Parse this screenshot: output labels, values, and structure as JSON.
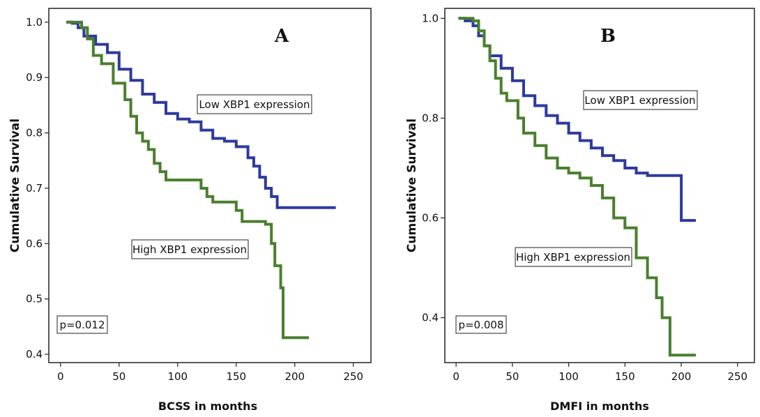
{
  "chart_data": [
    {
      "type": "line",
      "panel_label": "A",
      "xlabel": "BCSS in months",
      "ylabel": "Cumulative Survival",
      "xlim": [
        -10,
        265
      ],
      "ylim": [
        0.385,
        1.025
      ],
      "xticks": [
        0,
        50,
        100,
        150,
        200,
        250
      ],
      "yticks": [
        0.4,
        0.5,
        0.6,
        0.7,
        0.8,
        0.9,
        1.0
      ],
      "ytick_labels": [
        "0.4",
        "0.5",
        "0.6",
        "0.7",
        "0.8",
        "0.9",
        "1.0"
      ],
      "annotation": "p=0.012",
      "series": [
        {
          "name": "Low XBP1 expression",
          "color": "#2e3a9e",
          "x": [
            5,
            10,
            15,
            20,
            30,
            40,
            50,
            60,
            70,
            80,
            90,
            100,
            110,
            120,
            130,
            140,
            150,
            160,
            165,
            170,
            175,
            180,
            185,
            190,
            200,
            210,
            220,
            235
          ],
          "y": [
            1.0,
            0.998,
            0.99,
            0.975,
            0.96,
            0.945,
            0.915,
            0.895,
            0.87,
            0.855,
            0.835,
            0.825,
            0.82,
            0.805,
            0.79,
            0.785,
            0.775,
            0.755,
            0.74,
            0.72,
            0.7,
            0.685,
            0.665,
            0.665,
            0.665,
            0.665,
            0.665,
            0.665
          ]
        },
        {
          "name": "High XBP1 expression",
          "color": "#4a7f2e",
          "x": [
            5,
            18,
            23,
            28,
            35,
            45,
            55,
            60,
            65,
            70,
            75,
            80,
            85,
            90,
            95,
            100,
            110,
            120,
            125,
            130,
            135,
            145,
            150,
            155,
            165,
            175,
            180,
            183,
            188,
            190,
            200,
            212
          ],
          "y": [
            1.0,
            0.99,
            0.97,
            0.94,
            0.925,
            0.89,
            0.86,
            0.83,
            0.8,
            0.785,
            0.77,
            0.745,
            0.73,
            0.715,
            0.715,
            0.715,
            0.715,
            0.7,
            0.685,
            0.675,
            0.675,
            0.675,
            0.66,
            0.64,
            0.64,
            0.635,
            0.6,
            0.56,
            0.52,
            0.43,
            0.43,
            0.43
          ]
        }
      ]
    },
    {
      "type": "line",
      "panel_label": "B",
      "xlabel": "DMFI in months",
      "ylabel": "Cumulative Survival",
      "xlim": [
        -10,
        265
      ],
      "ylim": [
        0.31,
        1.02
      ],
      "xticks": [
        0,
        50,
        100,
        150,
        200,
        250
      ],
      "yticks": [
        0.4,
        0.6,
        0.8,
        1.0
      ],
      "ytick_labels": [
        "0.4",
        "0.6",
        "0.8",
        "1.0"
      ],
      "annotation": "p=0.008",
      "series": [
        {
          "name": "Low XBP1 expression",
          "color": "#2e3a9e",
          "x": [
            2,
            8,
            15,
            20,
            25,
            30,
            40,
            50,
            60,
            70,
            80,
            90,
            100,
            110,
            120,
            130,
            140,
            150,
            160,
            170,
            180,
            190,
            200,
            213
          ],
          "y": [
            1.0,
            0.995,
            0.985,
            0.965,
            0.945,
            0.925,
            0.9,
            0.875,
            0.845,
            0.825,
            0.805,
            0.79,
            0.77,
            0.755,
            0.74,
            0.725,
            0.715,
            0.7,
            0.69,
            0.685,
            0.685,
            0.685,
            0.595,
            0.595
          ]
        },
        {
          "name": "High XBP1 expression",
          "color": "#4a7f2e",
          "x": [
            2,
            15,
            20,
            25,
            30,
            35,
            40,
            45,
            55,
            60,
            70,
            80,
            90,
            100,
            110,
            120,
            130,
            140,
            150,
            160,
            170,
            178,
            183,
            190,
            200,
            213
          ],
          "y": [
            1.0,
            0.995,
            0.975,
            0.945,
            0.915,
            0.88,
            0.85,
            0.835,
            0.8,
            0.77,
            0.745,
            0.72,
            0.7,
            0.69,
            0.68,
            0.665,
            0.64,
            0.6,
            0.58,
            0.52,
            0.48,
            0.44,
            0.4,
            0.325,
            0.325,
            0.325
          ]
        }
      ]
    }
  ]
}
